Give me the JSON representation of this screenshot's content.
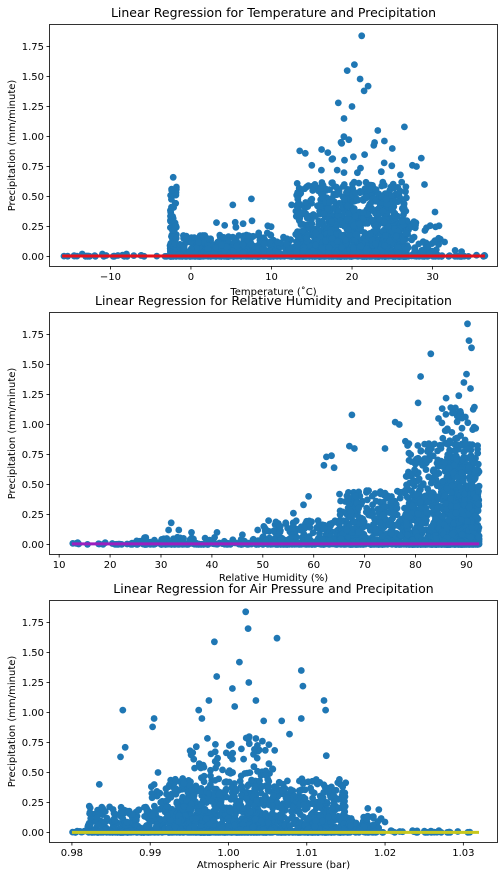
{
  "chart_data": [
    {
      "type": "scatter",
      "title": "Linear Regression for Temperature and Precipitation",
      "xlabel": "Temperature (˚C)",
      "ylabel": "Precipitation (mm/minute)",
      "xlim": [
        -17.5,
        38
      ],
      "ylim": [
        -0.08,
        1.93
      ],
      "xticks": [
        -10,
        0,
        10,
        20,
        30
      ],
      "xtick_labels": [
        "−10",
        "0",
        "10",
        "20",
        "30"
      ],
      "yticks": [
        0.0,
        0.25,
        0.5,
        0.75,
        1.0,
        1.25,
        1.5,
        1.75
      ],
      "ytick_labels": [
        "0.00",
        "0.25",
        "0.50",
        "0.75",
        "1.00",
        "1.25",
        "1.50",
        "1.75"
      ],
      "scatter_color": "#1f77b4",
      "regression_color": "#e8101a",
      "regression_line": {
        "x": [
          -16,
          36.5
        ],
        "y": [
          0.003,
          0.003
        ]
      },
      "clusters": [
        {
          "x": [
            -16,
            36.5
          ],
          "ymax": 0.01,
          "n": 130
        },
        {
          "x": [
            -2.6,
            -1.8
          ],
          "ymax": 0.58,
          "n": 90
        },
        {
          "x": [
            -2,
            14
          ],
          "ymax": 0.18,
          "n": 420
        },
        {
          "x": [
            3,
            12
          ],
          "ymax": 0.3,
          "n": 90
        },
        {
          "x": [
            13,
            27
          ],
          "ymax": 0.62,
          "n": 1000
        },
        {
          "x": [
            16,
            26
          ],
          "ymax": 1.0,
          "n": 130
        },
        {
          "x": [
            24,
            31
          ],
          "ymax": 0.3,
          "n": 120
        }
      ],
      "points": [
        {
          "x": -2.2,
          "y": 0.66
        },
        {
          "x": 7.5,
          "y": 0.48
        },
        {
          "x": 5.2,
          "y": 0.43
        },
        {
          "x": 12.5,
          "y": 0.43
        },
        {
          "x": 13.5,
          "y": 0.88
        },
        {
          "x": 14.2,
          "y": 0.86
        },
        {
          "x": 18.3,
          "y": 1.28
        },
        {
          "x": 19.4,
          "y": 1.55
        },
        {
          "x": 20.3,
          "y": 1.6
        },
        {
          "x": 21.0,
          "y": 1.48
        },
        {
          "x": 21.2,
          "y": 1.84
        },
        {
          "x": 21.5,
          "y": 1.38
        },
        {
          "x": 22.0,
          "y": 1.42
        },
        {
          "x": 19.0,
          "y": 1.15
        },
        {
          "x": 20.0,
          "y": 1.25
        },
        {
          "x": 23.2,
          "y": 1.05
        },
        {
          "x": 26.5,
          "y": 1.08
        },
        {
          "x": 27.5,
          "y": 0.76
        },
        {
          "x": 28.0,
          "y": 0.75
        },
        {
          "x": 28.6,
          "y": 0.82
        },
        {
          "x": 25.0,
          "y": 0.9
        },
        {
          "x": 15.0,
          "y": 0.76
        },
        {
          "x": 16.2,
          "y": 0.72
        },
        {
          "x": 17.5,
          "y": 0.81
        },
        {
          "x": 22.8,
          "y": 0.95
        },
        {
          "x": 24.0,
          "y": 0.78
        },
        {
          "x": 26.0,
          "y": 0.68
        },
        {
          "x": 29.0,
          "y": 0.6
        },
        {
          "x": 30.3,
          "y": 0.37
        },
        {
          "x": 31.5,
          "y": 0.12
        },
        {
          "x": 32.8,
          "y": 0.05
        },
        {
          "x": 33.6,
          "y": 0.04
        },
        {
          "x": -13.5,
          "y": 0.02
        },
        {
          "x": -11.0,
          "y": 0.02
        },
        {
          "x": -8.0,
          "y": 0.02
        }
      ]
    },
    {
      "type": "scatter",
      "title": "Linear Regression for Relative Humidity and Precipitation",
      "xlabel": "Relative Humidity (%)",
      "ylabel": "Precipitation (mm/minute)",
      "xlim": [
        8.2,
        96
      ],
      "ylim": [
        -0.08,
        1.93
      ],
      "xticks": [
        10,
        20,
        30,
        40,
        50,
        60,
        70,
        80,
        90
      ],
      "xtick_labels": [
        "10",
        "20",
        "30",
        "40",
        "50",
        "60",
        "70",
        "80",
        "90"
      ],
      "yticks": [
        0.0,
        0.25,
        0.5,
        0.75,
        1.0,
        1.25,
        1.5,
        1.75
      ],
      "ytick_labels": [
        "0.00",
        "0.25",
        "0.50",
        "0.75",
        "1.00",
        "1.25",
        "1.50",
        "1.75"
      ],
      "scatter_color": "#1f77b4",
      "regression_color": "#9b1fc0",
      "regression_line": {
        "x": [
          12.5,
          92.5
        ],
        "y": [
          0.004,
          0.004
        ]
      },
      "clusters": [
        {
          "x": [
            12.5,
            92.5
          ],
          "ymax": 0.015,
          "n": 160
        },
        {
          "x": [
            25,
            55
          ],
          "ymax": 0.06,
          "n": 120
        },
        {
          "x": [
            50,
            70
          ],
          "ymax": 0.2,
          "n": 240
        },
        {
          "x": [
            65,
            80
          ],
          "ymax": 0.45,
          "n": 420
        },
        {
          "x": [
            78,
            92.5
          ],
          "ymax": 0.85,
          "n": 800
        },
        {
          "x": [
            85,
            92.5
          ],
          "ymax": 1.15,
          "n": 320
        }
      ],
      "points": [
        {
          "x": 32.0,
          "y": 0.18
        },
        {
          "x": 31.5,
          "y": 0.12
        },
        {
          "x": 33.5,
          "y": 0.12
        },
        {
          "x": 36.0,
          "y": 0.1
        },
        {
          "x": 41.0,
          "y": 0.1
        },
        {
          "x": 46.0,
          "y": 0.08
        },
        {
          "x": 49.0,
          "y": 0.12
        },
        {
          "x": 54.5,
          "y": 0.18
        },
        {
          "x": 56.0,
          "y": 0.26
        },
        {
          "x": 58.0,
          "y": 0.33
        },
        {
          "x": 59.0,
          "y": 0.4
        },
        {
          "x": 62.0,
          "y": 0.66
        },
        {
          "x": 62.5,
          "y": 0.73
        },
        {
          "x": 63.5,
          "y": 0.74
        },
        {
          "x": 64.0,
          "y": 0.64
        },
        {
          "x": 67.5,
          "y": 1.08
        },
        {
          "x": 67.0,
          "y": 0.82
        },
        {
          "x": 68.0,
          "y": 0.8
        },
        {
          "x": 74.0,
          "y": 0.8
        },
        {
          "x": 76.0,
          "y": 1.02
        },
        {
          "x": 76.8,
          "y": 1.0
        },
        {
          "x": 78.0,
          "y": 0.86
        },
        {
          "x": 80.5,
          "y": 1.18
        },
        {
          "x": 81.0,
          "y": 1.4
        },
        {
          "x": 83.0,
          "y": 1.59
        },
        {
          "x": 86.0,
          "y": 1.22
        },
        {
          "x": 87.5,
          "y": 1.1
        },
        {
          "x": 88.5,
          "y": 1.24
        },
        {
          "x": 89.5,
          "y": 1.35
        },
        {
          "x": 90.0,
          "y": 1.42
        },
        {
          "x": 90.2,
          "y": 1.84
        },
        {
          "x": 90.5,
          "y": 1.7
        },
        {
          "x": 91.0,
          "y": 1.64
        },
        {
          "x": 90.8,
          "y": 1.3
        },
        {
          "x": 84.5,
          "y": 1.05
        }
      ]
    },
    {
      "type": "scatter",
      "title": "Linear Regression for Air Pressure and Precipitation",
      "xlabel": "Atmospheric Air Pressure (bar)",
      "ylabel": "Precipitation (mm/minute)",
      "xlim": [
        0.9772,
        1.0343
      ],
      "ylim": [
        -0.08,
        1.93
      ],
      "xticks": [
        0.98,
        0.99,
        1.0,
        1.01,
        1.02,
        1.03
      ],
      "xtick_labels": [
        "0.98",
        "0.99",
        "1.00",
        "1.01",
        "1.02",
        "1.03"
      ],
      "yticks": [
        0.0,
        0.25,
        0.5,
        0.75,
        1.0,
        1.25,
        1.5,
        1.75
      ],
      "ytick_labels": [
        "0.00",
        "0.25",
        "0.50",
        "0.75",
        "1.00",
        "1.25",
        "1.50",
        "1.75"
      ],
      "scatter_color": "#1f77b4",
      "regression_color": "#c8c81e",
      "regression_line": {
        "x": [
          0.98,
          1.032
        ],
        "y": [
          0.0,
          0.0
        ]
      },
      "clusters": [
        {
          "x": [
            0.98,
            1.032
          ],
          "ymax": 0.015,
          "n": 150
        },
        {
          "x": [
            0.982,
            0.99
          ],
          "ymax": 0.22,
          "n": 200
        },
        {
          "x": [
            0.99,
            1.015
          ],
          "ymax": 0.45,
          "n": 1000
        },
        {
          "x": [
            0.995,
            1.006
          ],
          "ymax": 0.8,
          "n": 300
        },
        {
          "x": [
            1.01,
            1.02
          ],
          "ymax": 0.15,
          "n": 140
        }
      ],
      "points": [
        {
          "x": 0.9865,
          "y": 1.02
        },
        {
          "x": 0.9868,
          "y": 0.71
        },
        {
          "x": 0.9862,
          "y": 0.63
        },
        {
          "x": 0.9835,
          "y": 0.4
        },
        {
          "x": 0.9905,
          "y": 0.95
        },
        {
          "x": 0.9903,
          "y": 0.88
        },
        {
          "x": 0.991,
          "y": 0.5
        },
        {
          "x": 0.9962,
          "y": 1.02
        },
        {
          "x": 0.9966,
          "y": 0.95
        },
        {
          "x": 0.9982,
          "y": 1.59
        },
        {
          "x": 0.9985,
          "y": 1.3
        },
        {
          "x": 1.0005,
          "y": 1.2
        },
        {
          "x": 1.0014,
          "y": 1.42
        },
        {
          "x": 1.0022,
          "y": 1.84
        },
        {
          "x": 1.0025,
          "y": 1.7
        },
        {
          "x": 1.0026,
          "y": 1.25
        },
        {
          "x": 1.0035,
          "y": 1.1
        },
        {
          "x": 1.0045,
          "y": 0.93
        },
        {
          "x": 1.0062,
          "y": 1.62
        },
        {
          "x": 1.0068,
          "y": 0.93
        },
        {
          "x": 1.0078,
          "y": 0.82
        },
        {
          "x": 1.0093,
          "y": 1.35
        },
        {
          "x": 1.0095,
          "y": 1.22
        },
        {
          "x": 1.0093,
          "y": 0.95
        },
        {
          "x": 1.0122,
          "y": 1.1
        },
        {
          "x": 1.0124,
          "y": 1.02
        },
        {
          "x": 1.0125,
          "y": 0.64
        },
        {
          "x": 1.0143,
          "y": 0.4
        },
        {
          "x": 1.0178,
          "y": 0.2
        },
        {
          "x": 1.0185,
          "y": 0.12
        },
        {
          "x": 1.0192,
          "y": 0.19
        },
        {
          "x": 1.0008,
          "y": 1.05
        },
        {
          "x": 0.9975,
          "y": 1.1
        }
      ]
    }
  ]
}
